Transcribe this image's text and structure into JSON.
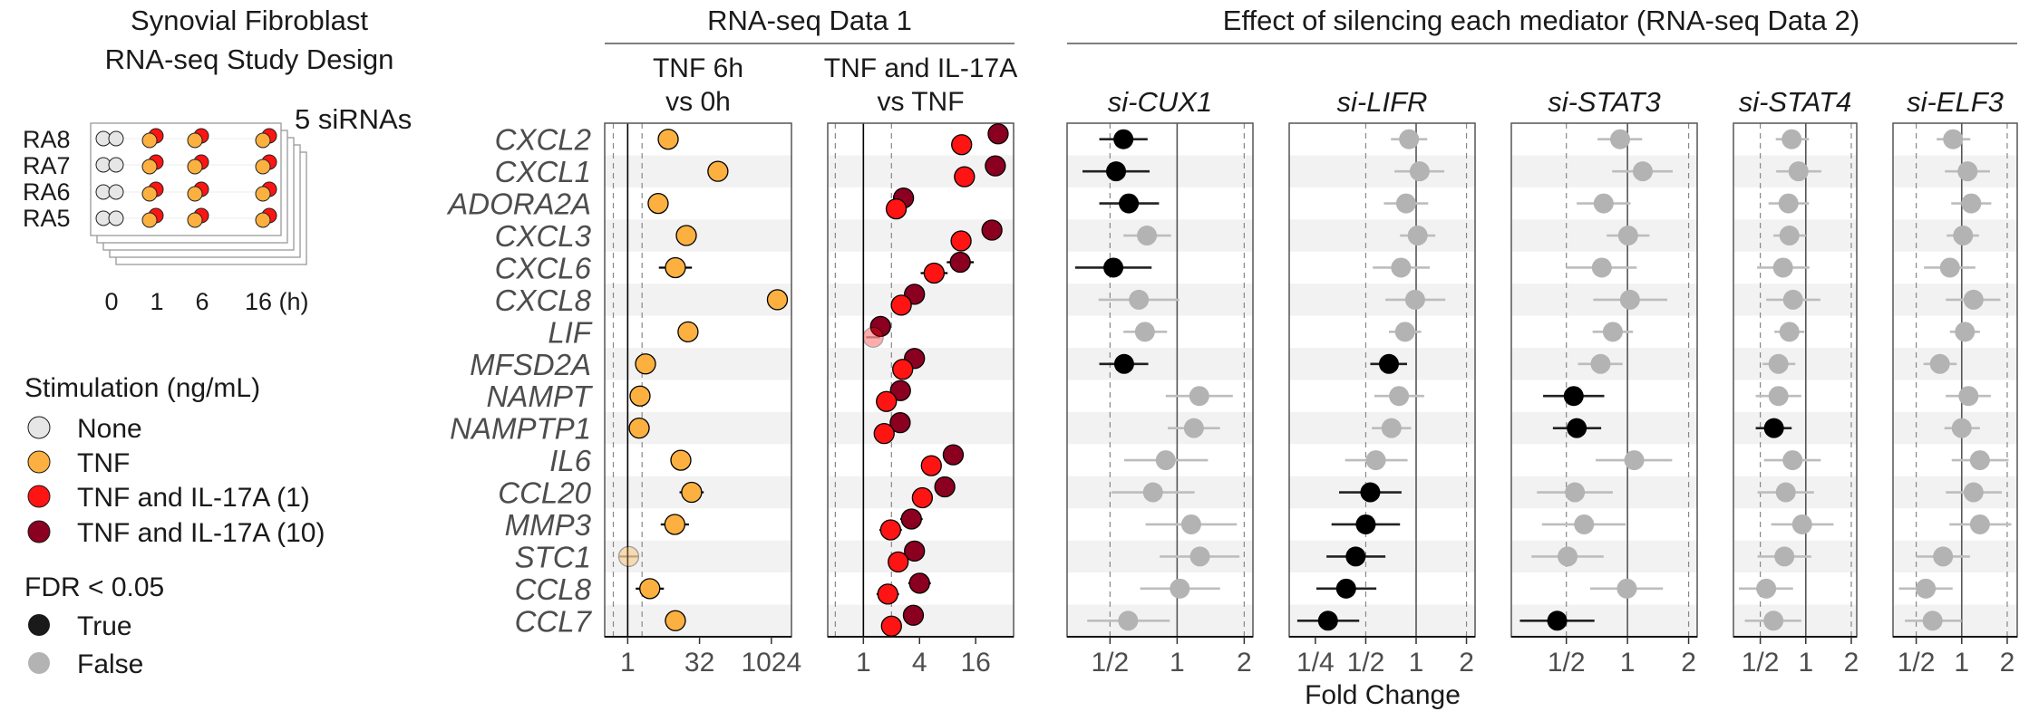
{
  "design": {
    "title_line1": "Synovial Fibroblast",
    "title_line2": "RNA-seq Study Design",
    "sirna_label": "5 siRNAs",
    "donors": [
      "RA8",
      "RA7",
      "RA6",
      "RA5"
    ],
    "timepoints": [
      "0",
      "1",
      "6",
      "16 (h)"
    ]
  },
  "legend": {
    "stim_title": "Stimulation (ng/mL)",
    "stim_items": [
      {
        "label": "None",
        "color": "#e6e6e6"
      },
      {
        "label": "TNF",
        "color": "#fbb040"
      },
      {
        "label": "TNF and IL-17A (1)",
        "color": "#ff1414"
      },
      {
        "label": "TNF and IL-17A (10)",
        "color": "#8b0020"
      }
    ],
    "fdr_title": "FDR < 0.05",
    "fdr_items": [
      {
        "label": "True",
        "color": "#1a1a1a"
      },
      {
        "label": "False",
        "color": "#b3b3b3"
      }
    ]
  },
  "headers": {
    "data1": "RNA-seq Data 1",
    "data2": "Effect of silencing each mediator (RNA-seq Data 2)",
    "x_axis_label": "Fold Change"
  },
  "chart_data": {
    "type": "scatter",
    "scale": "log2 fold change",
    "genes": [
      "CXCL2",
      "CXCL1",
      "ADORA2A",
      "CXCL3",
      "CXCL6",
      "CXCL8",
      "LIF",
      "MFSD2A",
      "NAMPT",
      "NAMPTP1",
      "IL6",
      "CCL20",
      "MMP3",
      "STC1",
      "CCL8",
      "CCL7"
    ],
    "panels": [
      {
        "title": [
          "TNF 6h",
          "vs 0h"
        ],
        "italic": false,
        "xlim": [
          -1.6,
          11.4
        ],
        "ticks": [
          {
            "v": 0,
            "label": "1"
          },
          {
            "v": 5,
            "label": "32"
          },
          {
            "v": 10,
            "label": "1024"
          }
        ],
        "dashed": [
          -1,
          1
        ],
        "series": [
          {
            "name": "TNF",
            "color": "#fbb040",
            "fc": [
              2.82,
              6.28,
              2.12,
              4.08,
              3.32,
              10.42,
              4.2,
              1.24,
              0.86,
              0.8,
              3.7,
              4.45,
              3.28,
              0.07,
              1.54,
              3.32
            ],
            "half_ci": [
              0.5,
              0.55,
              0.7,
              0.55,
              1.15,
              0.4,
              0.35,
              0.35,
              0.35,
              0.35,
              0.6,
              0.84,
              0.98,
              0.65,
              0.98,
              0.73
            ],
            "sig": [
              1,
              1,
              1,
              1,
              1,
              1,
              1,
              1,
              1,
              1,
              1,
              1,
              1,
              0,
              1,
              1
            ]
          }
        ]
      },
      {
        "title": [
          "TNF and IL-17A",
          "vs TNF"
        ],
        "italic": false,
        "xlim": [
          -1.27,
          5.35
        ],
        "ticks": [
          {
            "v": 0,
            "label": "1"
          },
          {
            "v": 2,
            "label": "4"
          },
          {
            "v": 4,
            "label": "16"
          }
        ],
        "dashed": [
          -1,
          1
        ],
        "series": [
          {
            "name": "TNF and IL-17A (10)",
            "color": "#8b0020",
            "offset": -1,
            "fc": [
              4.8,
              4.7,
              1.43,
              4.58,
              3.45,
              1.82,
              0.61,
              1.82,
              1.32,
              1.31,
              3.2,
              2.9,
              1.71,
              1.82,
              2.0,
              1.78
            ],
            "half_ci": [
              0.2,
              0.2,
              0.3,
              0.2,
              0.48,
              0.2,
              0.2,
              0.2,
              0.2,
              0.2,
              0.2,
              0.35,
              0.4,
              0.2,
              0.4,
              0.3
            ],
            "sig": [
              1,
              1,
              1,
              1,
              1,
              1,
              1,
              1,
              1,
              1,
              1,
              1,
              1,
              1,
              1,
              1
            ]
          },
          {
            "name": "TNF and IL-17A (1)",
            "color": "#ff1414",
            "offset": 1,
            "fc": [
              3.5,
              3.6,
              1.17,
              3.48,
              2.52,
              1.35,
              0.35,
              1.4,
              0.82,
              0.74,
              2.42,
              2.1,
              0.97,
              1.24,
              0.87,
              1.0
            ],
            "half_ci": [
              0.2,
              0.2,
              0.3,
              0.2,
              0.48,
              0.2,
              0.25,
              0.2,
              0.2,
              0.2,
              0.2,
              0.35,
              0.4,
              0.25,
              0.4,
              0.3
            ],
            "sig": [
              1,
              1,
              1,
              1,
              1,
              1,
              0,
              1,
              1,
              1,
              1,
              1,
              1,
              1,
              1,
              1
            ]
          }
        ]
      },
      {
        "title": [
          "si-CUX1"
        ],
        "italic": true,
        "xlim": [
          -1.64,
          1.13
        ],
        "ticks": [
          {
            "v": -1,
            "label": "1/2"
          },
          {
            "v": 0,
            "label": "1"
          },
          {
            "v": 1,
            "label": "2"
          }
        ],
        "dashed": [
          -1,
          1
        ],
        "fc": [
          -0.8,
          -0.91,
          -0.72,
          -0.45,
          -0.95,
          -0.57,
          -0.48,
          -0.79,
          0.33,
          0.25,
          -0.17,
          -0.36,
          0.21,
          0.34,
          0.04,
          -0.73
        ],
        "lo": [
          -1.16,
          -1.41,
          -1.16,
          -0.8,
          -1.52,
          -1.17,
          -0.8,
          -1.16,
          -0.17,
          -0.14,
          -0.79,
          -0.98,
          -0.47,
          -0.26,
          -0.55,
          -1.34
        ],
        "hi": [
          -0.44,
          -0.41,
          -0.27,
          -0.09,
          -0.38,
          0.03,
          -0.15,
          -0.43,
          0.83,
          0.64,
          0.46,
          0.26,
          0.89,
          0.93,
          0.64,
          -0.11
        ],
        "sig": [
          1,
          1,
          1,
          0,
          1,
          0,
          0,
          1,
          0,
          0,
          0,
          0,
          0,
          0,
          0,
          0
        ]
      },
      {
        "title": [
          "si-LIFR"
        ],
        "italic": true,
        "xlim": [
          -2.52,
          1.17
        ],
        "ticks": [
          {
            "v": -2,
            "label": "1/4"
          },
          {
            "v": -1,
            "label": "1/2"
          },
          {
            "v": 0,
            "label": "1"
          },
          {
            "v": 1,
            "label": "2"
          }
        ],
        "dashed": [
          -1,
          1
        ],
        "fc": [
          -0.14,
          0.07,
          -0.2,
          0.03,
          -0.3,
          -0.02,
          -0.22,
          -0.54,
          -0.34,
          -0.49,
          -0.8,
          -0.91,
          -1.0,
          -1.2,
          -1.39,
          -1.75
        ],
        "lo": [
          -0.5,
          -0.43,
          -0.64,
          -0.32,
          -0.86,
          -0.61,
          -0.54,
          -0.91,
          -0.83,
          -0.88,
          -1.41,
          -1.53,
          -1.68,
          -1.78,
          -1.98,
          -2.36
        ],
        "hi": [
          0.22,
          0.56,
          0.24,
          0.38,
          0.27,
          0.58,
          0.1,
          -0.18,
          0.16,
          -0.1,
          -0.17,
          -0.29,
          -0.32,
          -0.61,
          -0.79,
          -1.13
        ],
        "sig": [
          0,
          0,
          0,
          0,
          0,
          0,
          0,
          1,
          0,
          0,
          0,
          1,
          1,
          1,
          1,
          1
        ]
      },
      {
        "title": [
          "si-STAT3"
        ],
        "italic": true,
        "xlim": [
          -1.9,
          1.14
        ],
        "ticks": [
          {
            "v": -1,
            "label": "1/2"
          },
          {
            "v": 0,
            "label": "1"
          },
          {
            "v": 1,
            "label": "2"
          }
        ],
        "dashed": [
          -1,
          1
        ],
        "fc": [
          -0.12,
          0.25,
          -0.39,
          0.01,
          -0.42,
          0.04,
          -0.24,
          -0.44,
          -0.88,
          -0.83,
          0.11,
          -0.86,
          -0.71,
          -0.98,
          -0.01,
          -1.15
        ],
        "lo": [
          -0.49,
          -0.25,
          -0.83,
          -0.34,
          -1.0,
          -0.56,
          -0.57,
          -0.81,
          -1.38,
          -1.22,
          -0.52,
          -1.48,
          -1.4,
          -1.57,
          -0.61,
          -1.76
        ],
        "hi": [
          0.24,
          0.74,
          0.05,
          0.36,
          0.15,
          0.65,
          0.09,
          -0.08,
          -0.38,
          -0.43,
          0.73,
          -0.24,
          -0.03,
          -0.39,
          0.58,
          -0.54
        ],
        "sig": [
          0,
          0,
          0,
          0,
          0,
          0,
          0,
          0,
          1,
          1,
          0,
          0,
          0,
          0,
          0,
          1
        ]
      },
      {
        "title": [
          "si-STAT4"
        ],
        "italic": true,
        "xlim": [
          -1.59,
          1.12
        ],
        "ticks": [
          {
            "v": -1,
            "label": "1/2"
          },
          {
            "v": 0,
            "label": "1"
          },
          {
            "v": 1,
            "label": "2"
          }
        ],
        "dashed": [
          -1,
          1
        ],
        "fc": [
          -0.31,
          -0.16,
          -0.38,
          -0.36,
          -0.5,
          -0.28,
          -0.36,
          -0.6,
          -0.6,
          -0.7,
          -0.29,
          -0.44,
          -0.08,
          -0.47,
          -0.87,
          -0.71
        ],
        "lo": [
          -0.66,
          -0.65,
          -0.82,
          -0.71,
          -1.07,
          -0.87,
          -0.69,
          -0.95,
          -1.1,
          -1.1,
          -0.92,
          -1.06,
          -0.76,
          -1.06,
          -1.47,
          -1.34
        ],
        "hi": [
          0.07,
          0.34,
          0.07,
          0.0,
          0.08,
          0.32,
          -0.03,
          -0.23,
          -0.1,
          -0.31,
          0.33,
          0.18,
          0.61,
          0.12,
          -0.28,
          -0.1
        ],
        "sig": [
          0,
          0,
          0,
          0,
          0,
          0,
          0,
          0,
          0,
          1,
          0,
          0,
          0,
          0,
          0,
          0
        ]
      },
      {
        "title": [
          "si-ELF3"
        ],
        "italic": true,
        "xlim": [
          -1.51,
          1.22
        ],
        "ticks": [
          {
            "v": -1,
            "label": "1/2"
          },
          {
            "v": 0,
            "label": "1"
          },
          {
            "v": 1,
            "label": "2"
          }
        ],
        "dashed": [
          -1,
          1
        ],
        "fc": [
          -0.19,
          0.13,
          0.21,
          0.03,
          -0.26,
          0.26,
          0.07,
          -0.48,
          0.15,
          0.0,
          0.4,
          0.26,
          0.4,
          -0.41,
          -0.79,
          -0.64
        ],
        "lo": [
          -0.55,
          -0.37,
          -0.23,
          -0.33,
          -0.83,
          -0.35,
          -0.26,
          -0.84,
          -0.35,
          -0.38,
          -0.22,
          -0.35,
          -0.27,
          -1.0,
          -1.38,
          -1.25
        ],
        "hi": [
          0.19,
          0.62,
          0.65,
          0.38,
          0.3,
          0.85,
          0.4,
          -0.11,
          0.64,
          0.4,
          1.03,
          0.88,
          1.09,
          0.18,
          -0.2,
          0.0
        ],
        "sig": [
          0,
          0,
          0,
          0,
          0,
          0,
          0,
          0,
          0,
          0,
          0,
          0,
          0,
          0,
          0,
          0
        ]
      }
    ]
  }
}
